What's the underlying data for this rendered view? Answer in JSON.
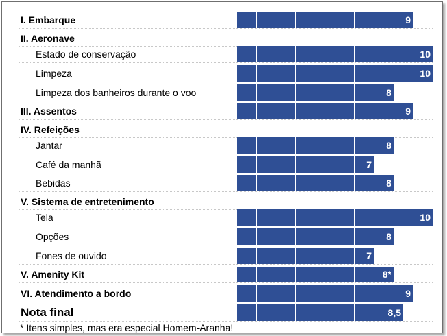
{
  "chart_data": {
    "type": "bar",
    "orientation": "horizontal",
    "bar_color": "#2f4f95",
    "scale_max": 10,
    "rows": [
      {
        "label": "I. Embarque",
        "kind": "section",
        "value": 9,
        "value_label": "9"
      },
      {
        "label": "II. Aeronave",
        "kind": "section",
        "value": null,
        "value_label": ""
      },
      {
        "label": "Estado de conservação",
        "kind": "item",
        "value": 10,
        "value_label": "10"
      },
      {
        "label": "Limpeza",
        "kind": "item",
        "value": 10,
        "value_label": "10"
      },
      {
        "label": "Limpeza dos banheiros durante o voo",
        "kind": "item",
        "value": 8,
        "value_label": "8"
      },
      {
        "label": "III. Assentos",
        "kind": "section",
        "value": 9,
        "value_label": "9"
      },
      {
        "label": "IV. Refeições",
        "kind": "section",
        "value": null,
        "value_label": ""
      },
      {
        "label": "Jantar",
        "kind": "item",
        "value": 8,
        "value_label": "8"
      },
      {
        "label": "Café da manhã",
        "kind": "item",
        "value": 7,
        "value_label": "7"
      },
      {
        "label": "Bebidas",
        "kind": "item",
        "value": 8,
        "value_label": "8"
      },
      {
        "label": "V. Sistema de entretenimento",
        "kind": "section",
        "value": null,
        "value_label": ""
      },
      {
        "label": "Tela",
        "kind": "item",
        "value": 10,
        "value_label": "10"
      },
      {
        "label": "Opções",
        "kind": "item",
        "value": 8,
        "value_label": "8"
      },
      {
        "label": "Fones de ouvido",
        "kind": "item",
        "value": 7,
        "value_label": "7"
      },
      {
        "label": "V. Amenity Kit",
        "kind": "section",
        "value": 8,
        "value_label": "8*"
      },
      {
        "label": "VI. Atendimento a bordo",
        "kind": "section",
        "value": 9,
        "value_label": "9"
      },
      {
        "label": "Nota final",
        "kind": "final",
        "value": 8.5,
        "value_label": "8,5"
      }
    ],
    "footnote": "* Itens simples, mas era especial Homem-Aranha!"
  }
}
